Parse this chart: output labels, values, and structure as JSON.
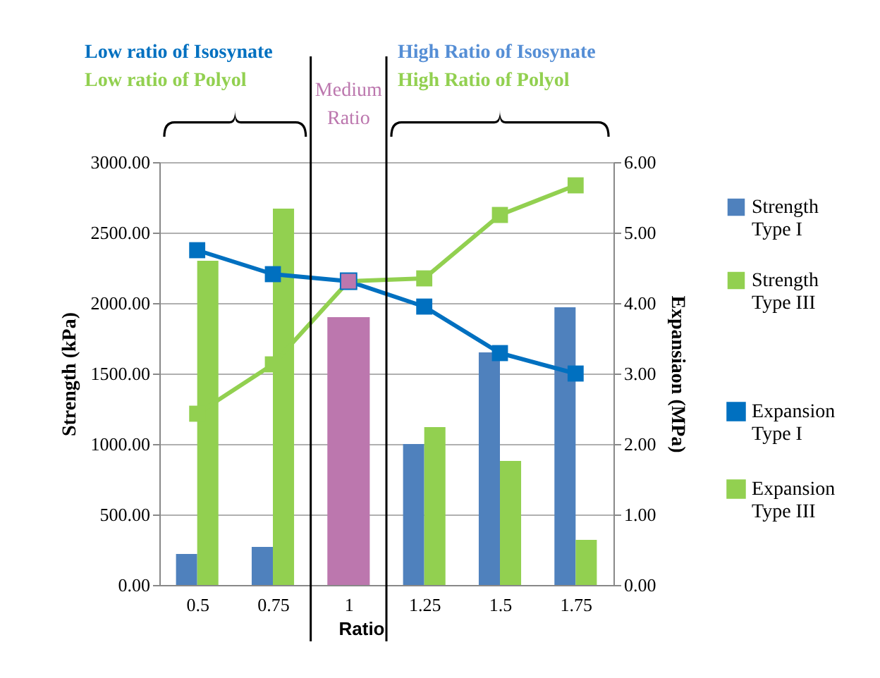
{
  "chart_data": {
    "type": "bar",
    "categories": [
      "0.5",
      "0.75",
      "1",
      "1.25",
      "1.5",
      "1.75"
    ],
    "xlabel": "Ratio",
    "ylabel": "Strength (kPa)",
    "y2label": "Expansiaon (MPa)",
    "series": [
      {
        "name": "Strength Type I",
        "color": "#4f81bd",
        "values": [
          220,
          270,
          null,
          1000,
          1650,
          1970
        ]
      },
      {
        "name": "Strength Type III",
        "color": "#92d050",
        "values": [
          2300,
          2670,
          null,
          1120,
          880,
          320
        ]
      },
      {
        "color": "#bc77ae",
        "values": [
          null,
          null,
          1900,
          null,
          null,
          null
        ]
      },
      {
        "name": "Expansion Type I",
        "type": "line",
        "axis": "y2",
        "color": "#0070c0",
        "values": [
          4.75,
          4.41,
          4.31,
          3.95,
          3.29,
          3.0
        ]
      },
      {
        "name": "Expansion Type III",
        "type": "line",
        "axis": "y2",
        "color": "#92d050",
        "values": [
          2.43,
          3.13,
          4.31,
          4.35,
          5.25,
          5.67
        ]
      },
      {
        "type": "scatter",
        "axis": "y2",
        "color": "#bc77ae",
        "values": [
          null,
          null,
          4.31,
          null,
          null,
          null
        ]
      }
    ],
    "ylim": [
      0,
      3000
    ],
    "yticks": [
      {
        "value": 0,
        "label": "0.00"
      },
      {
        "value": 500,
        "label": "500.00"
      },
      {
        "value": 1000,
        "label": "1000.00"
      },
      {
        "value": 1500,
        "label": "1500.00"
      },
      {
        "value": 2000,
        "label": "2000.00"
      },
      {
        "value": 2500,
        "label": "2500.00"
      },
      {
        "value": 3000,
        "label": "3000.00"
      }
    ],
    "y2lim": [
      0,
      6
    ],
    "y2ticks": [
      {
        "value": 0,
        "label": "0.00"
      },
      {
        "value": 1,
        "label": "1.00"
      },
      {
        "value": 2,
        "label": "2.00"
      },
      {
        "value": 3,
        "label": "3.00"
      },
      {
        "value": 4,
        "label": "4.00"
      },
      {
        "value": 5,
        "label": "5.00"
      },
      {
        "value": 6,
        "label": "6.00"
      }
    ],
    "grid": "y",
    "legend": "right",
    "marker": "square",
    "line_style": "solid",
    "annotations": [
      "Low ratio of Isosynate",
      "Low ratio of Polyol",
      "Medium Ratio",
      "High Ratio of Isosynate",
      "High Ratio of Polyol"
    ]
  }
}
